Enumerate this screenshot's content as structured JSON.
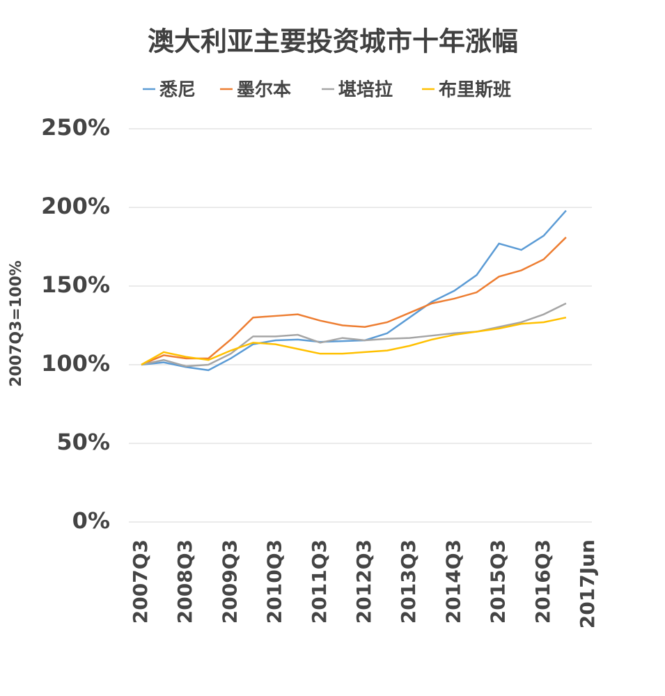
{
  "chart_data": {
    "type": "line",
    "title": "澳大利亚主要投资城市十年涨幅",
    "y_label": "2007Q3=100%",
    "categories": [
      "2007Q3",
      null,
      "2008Q3",
      null,
      "2009Q3",
      null,
      "2010Q3",
      null,
      "2011Q3",
      null,
      "2012Q3",
      null,
      "2013Q3",
      null,
      "2014Q3",
      null,
      "2015Q3",
      null,
      "2016Q3",
      null,
      "2017Jun"
    ],
    "series": [
      {
        "name": "悉尼",
        "color": "#5b9bd5",
        "values": [
          100,
          101.5,
          98.5,
          96.5,
          104,
          113,
          115.5,
          116,
          114.5,
          115,
          115.5,
          120,
          130,
          140,
          147,
          157,
          177,
          173,
          182,
          198,
          null
        ]
      },
      {
        "name": "墨尔本",
        "color": "#ed7d31",
        "values": [
          100,
          106,
          104,
          104,
          116,
          130,
          131,
          132,
          128,
          125,
          124,
          127,
          133,
          139,
          142,
          146,
          156,
          160,
          167,
          181,
          null
        ]
      },
      {
        "name": "堪培拉",
        "color": "#a5a5a5",
        "values": [
          100,
          103,
          99,
          100,
          107,
          118,
          118,
          119,
          114,
          117,
          115.5,
          116.5,
          117,
          118.5,
          120,
          121,
          124,
          127,
          132,
          139,
          null
        ]
      },
      {
        "name": "布里斯班",
        "color": "#ffc000",
        "values": [
          100,
          108,
          105,
          103,
          109,
          114,
          113,
          110,
          107,
          107,
          108,
          109,
          112,
          116,
          119,
          121,
          123,
          126,
          127,
          130,
          null
        ]
      }
    ],
    "ylim": [
      0,
      250
    ],
    "yticks": [
      {
        "value": 0,
        "label": "0%"
      },
      {
        "value": 50,
        "label": "50%"
      },
      {
        "value": 100,
        "label": "100%"
      },
      {
        "value": 150,
        "label": "150%"
      },
      {
        "value": 200,
        "label": "200%"
      },
      {
        "value": 250,
        "label": "250%"
      }
    ],
    "grid": true
  }
}
